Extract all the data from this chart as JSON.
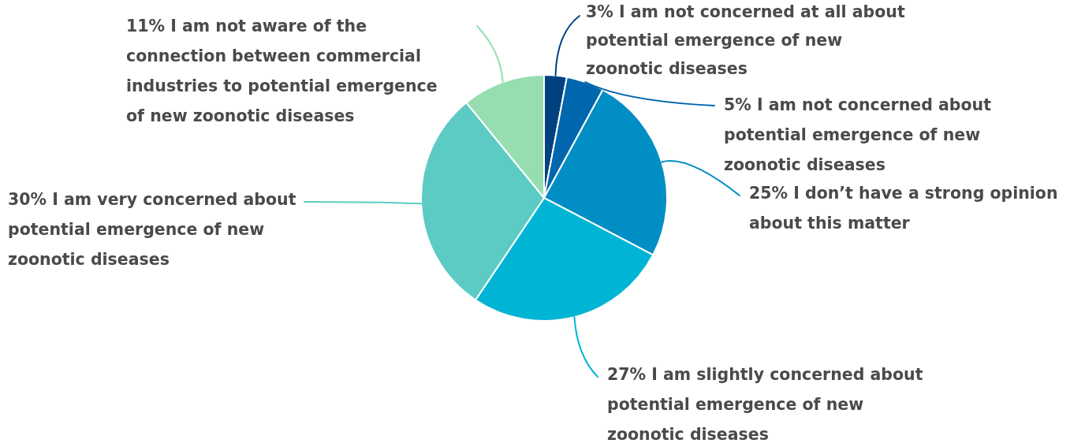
{
  "chart_data": {
    "type": "pie",
    "categories": [
      "I am not concerned at all about potential emergence of new zoonotic diseases",
      "I am not concerned about potential emergence of new zoonotic diseases",
      "I don’t have a strong opinion about this matter",
      "I am slightly concerned about potential emergence of new zoonotic diseases",
      "I am very concerned about potential emergence of new zoonotic diseases",
      "I am not aware of the connection between commercial industries to potential emergence of new zoonotic diseases"
    ],
    "values": [
      3,
      5,
      25,
      27,
      30,
      11
    ],
    "value_labels": [
      "3%",
      "5%",
      "25%",
      "27%",
      "30%",
      "11%"
    ],
    "colors": [
      "#00427f",
      "#0066ad",
      "#008ec4",
      "#00b4d5",
      "#5ccbc3",
      "#96deb0"
    ]
  }
}
